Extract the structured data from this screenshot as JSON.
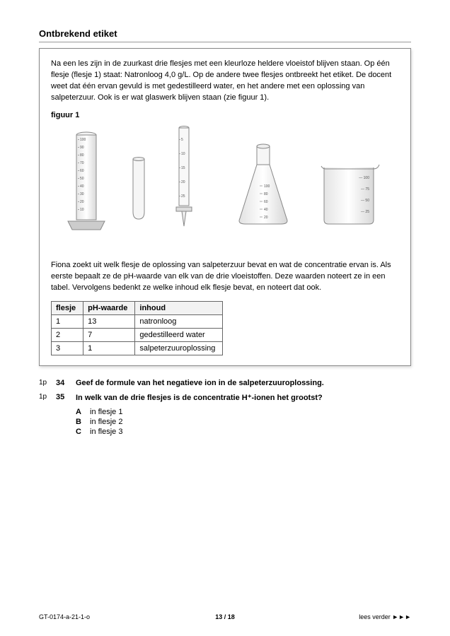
{
  "title": "Ontbrekend etiket",
  "intro": "Na een les zijn in de zuurkast drie flesjes met een kleurloze heldere vloeistof blijven staan. Op één flesje (flesje 1) staat: Natronloog 4,0 g/L. Op de andere twee flesjes ontbreekt het etiket. De docent weet dat één ervan gevuld is met gedestilleerd water, en het andere met een oplossing van salpeterzuur. Ook is er wat glaswerk blijven staan (zie figuur 1).",
  "figureLabel": "figuur 1",
  "cylinder": {
    "ticks": [
      100,
      90,
      80,
      70,
      60,
      50,
      40,
      30,
      20,
      10
    ]
  },
  "burette": {
    "ticks": [
      5,
      10,
      15,
      20,
      25
    ]
  },
  "flask": {
    "ticks": [
      100,
      80,
      60,
      40,
      20
    ]
  },
  "beaker": {
    "ticks": [
      100,
      75,
      50,
      25
    ]
  },
  "para2": "Fiona zoekt uit welk flesje de oplossing van salpeterzuur bevat en wat de concentratie ervan is. Als eerste bepaalt ze de pH-waarde van elk van de drie vloeistoffen. Deze waarden noteert ze in een tabel. Vervolgens bedenkt ze welke inhoud elk flesje bevat, en noteert dat ook.",
  "table": {
    "headers": [
      "flesje",
      "pH-waarde",
      "inhoud"
    ],
    "rows": [
      [
        "1",
        "13",
        "natronloog"
      ],
      [
        "2",
        "7",
        "gedestilleerd water"
      ],
      [
        "3",
        "1",
        "salpeterzuuroplossing"
      ]
    ]
  },
  "questions": [
    {
      "points": "1p",
      "num": "34",
      "text": "Geef de formule van het negatieve ion in de salpeterzuuroplossing."
    },
    {
      "points": "1p",
      "num": "35",
      "text": "In welk van de drie flesjes is de concentratie H⁺-ionen het grootst?",
      "options": [
        {
          "letter": "A",
          "text": "in flesje 1"
        },
        {
          "letter": "B",
          "text": "in flesje 2"
        },
        {
          "letter": "C",
          "text": "in flesje 3"
        }
      ]
    }
  ],
  "footer": {
    "left": "GT-0174-a-21-1-o",
    "center": "13 / 18",
    "right": "lees verder ►►►"
  }
}
